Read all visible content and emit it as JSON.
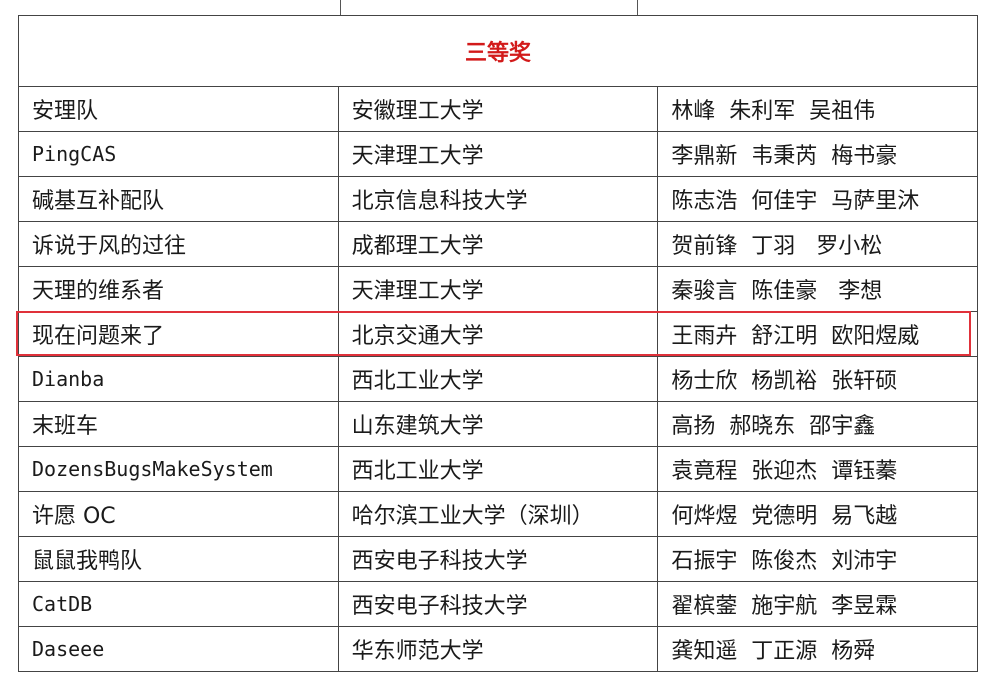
{
  "table": {
    "title": "三等奖",
    "highlight_color": "#e0313a",
    "title_color": "#d21a1a",
    "highlighted_row": 5,
    "rows": [
      {
        "team": "安理队",
        "school": "安徽理工大学",
        "members": "林峰  朱利军  吴祖伟"
      },
      {
        "team": "PingCAS",
        "school": "天津理工大学",
        "members": "李鼎新  韦秉芮  梅书豪"
      },
      {
        "team": "碱基互补配队",
        "school": "北京信息科技大学",
        "members": "陈志浩  何佳宇  马萨里沐"
      },
      {
        "team": "诉说于风的过往",
        "school": "成都理工大学",
        "members": "贺前锋  丁羽   罗小松"
      },
      {
        "team": "天理的维系者",
        "school": "天津理工大学",
        "members": "秦骏言  陈佳豪   李想"
      },
      {
        "team": "现在问题来了",
        "school": "北京交通大学",
        "members": "王雨卉  舒江明  欧阳煜威"
      },
      {
        "team": "Dianba",
        "school": "西北工业大学",
        "members": "杨士欣  杨凯裕  张轩硕"
      },
      {
        "team": "末班车",
        "school": "山东建筑大学",
        "members": "高扬  郝晓东  邵宇鑫"
      },
      {
        "team": "DozensBugsMakeSystem",
        "school": "西北工业大学",
        "members": "袁竟程  张迎杰  谭钰蓁"
      },
      {
        "team": "许愿 OC",
        "school": "哈尔滨工业大学（深圳）",
        "members": "何烨煜  党德明  易飞越"
      },
      {
        "team": "鼠鼠我鸭队",
        "school": "西安电子科技大学",
        "members": "石振宇  陈俊杰  刘沛宇"
      },
      {
        "team": "CatDB",
        "school": "西安电子科技大学",
        "members": "翟槟蓥  施宇航  李昱霖"
      },
      {
        "team": "Daseee",
        "school": "华东师范大学",
        "members": "龚知遥  丁正源  杨舜"
      }
    ]
  }
}
